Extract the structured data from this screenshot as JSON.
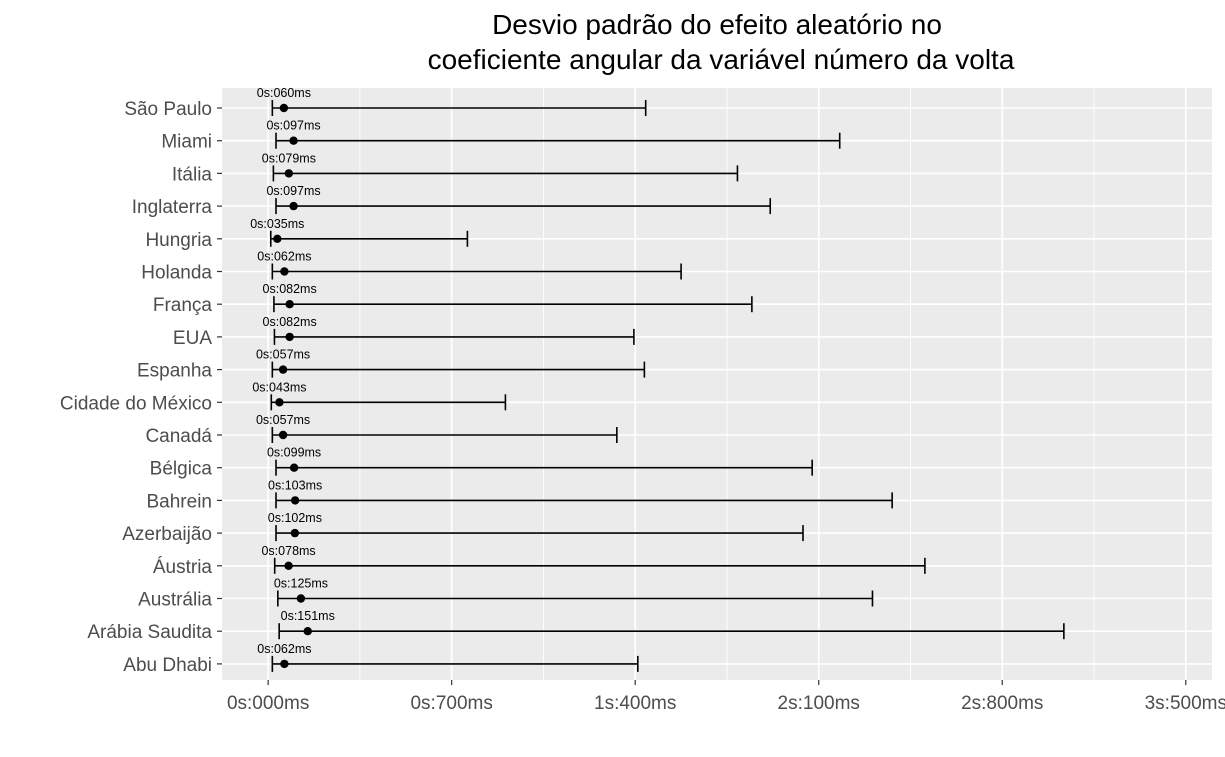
{
  "chart_data": {
    "type": "errorbar",
    "title_lines": [
      "Desvio padrão do efeito aleatório no",
      "coeficiente angular da variável número da volta"
    ],
    "xlabel": "",
    "ylabel": "",
    "xlim_ms": [
      -176,
      3600
    ],
    "x_ticks_ms": [
      0,
      700,
      1400,
      2100,
      2800,
      3500
    ],
    "x_tick_labels": [
      "0s:000ms",
      "0s:700ms",
      "1s:400ms",
      "2s:100ms",
      "2s:800ms",
      "3s:500ms"
    ],
    "grid": true,
    "categories": [
      "São Paulo",
      "Miami",
      "Itália",
      "Inglaterra",
      "Hungria",
      "Holanda",
      "França",
      "EUA",
      "Espanha",
      "Cidade do México",
      "Canadá",
      "Bélgica",
      "Bahrein",
      "Azerbaijão",
      "Áustria",
      "Austrália",
      "Arábia Saudita",
      "Abu Dhabi"
    ],
    "estimate_ms": [
      60,
      97,
      79,
      97,
      35,
      62,
      82,
      82,
      57,
      43,
      57,
      99,
      103,
      102,
      78,
      125,
      151,
      62
    ],
    "lower_ms": [
      16,
      30,
      20,
      30,
      10,
      16,
      22,
      24,
      16,
      12,
      16,
      30,
      30,
      30,
      25,
      37,
      42,
      16
    ],
    "upper_ms": [
      1440,
      2180,
      1790,
      1915,
      760,
      1575,
      1845,
      1395,
      1435,
      905,
      1330,
      2075,
      2380,
      2040,
      2505,
      2305,
      3035,
      1410
    ],
    "point_labels": [
      "0s:060ms",
      "0s:097ms",
      "0s:079ms",
      "0s:097ms",
      "0s:035ms",
      "0s:062ms",
      "0s:082ms",
      "0s:082ms",
      "0s:057ms",
      "0s:043ms",
      "0s:057ms",
      "0s:099ms",
      "0s:103ms",
      "0s:102ms",
      "0s:078ms",
      "0s:125ms",
      "0s:151ms",
      "0s:062ms"
    ],
    "panel_background": "#ebebeb",
    "grid_color": "#ffffff",
    "mark_color": "#000000"
  }
}
